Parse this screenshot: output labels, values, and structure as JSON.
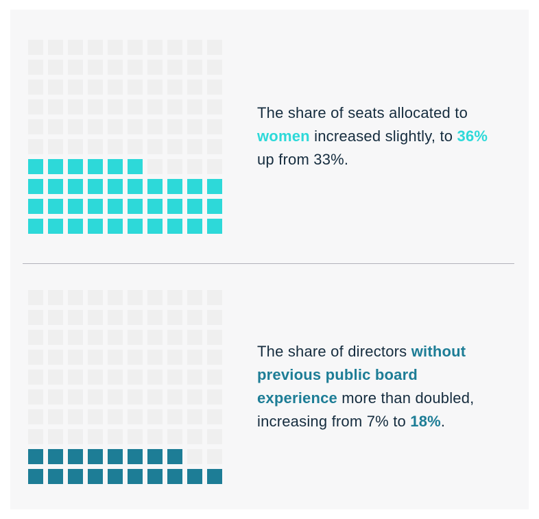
{
  "page": {
    "background": "#ffffff",
    "card_background": "#f7f7f8"
  },
  "colors": {
    "accent_cyan": "#2dd9d9",
    "accent_teal": "#1d7d96",
    "empty_square": "#efefef",
    "text_dark": "#152c3e",
    "divider": "#b1b1ba"
  },
  "sections": [
    {
      "caption_segments": [
        {
          "text": "The share of seats allocated to ",
          "style": "normal"
        },
        {
          "text": "women",
          "style": "accent-cyan"
        },
        {
          "text": " increased slightly, to ",
          "style": "normal"
        },
        {
          "text": "36%",
          "style": "accent-cyan"
        },
        {
          "text": " up from 33%.",
          "style": "normal"
        }
      ]
    },
    {
      "caption_segments": [
        {
          "text": "The share of directors ",
          "style": "normal"
        },
        {
          "text": "without previous public board experience",
          "style": "accent-teal"
        },
        {
          "text": " more than doubled, increasing from 7% to ",
          "style": "normal"
        },
        {
          "text": "18%",
          "style": "accent-teal"
        },
        {
          "text": ".",
          "style": "normal"
        }
      ]
    }
  ],
  "chart_data": [
    {
      "type": "waffle",
      "title": "Share of seats allocated to women",
      "rows": 10,
      "columns": 10,
      "percent_per_square": 1,
      "filled_squares": 36,
      "value_percent": 36,
      "previous_value_percent": 33,
      "fill_color": "#2dd9d9",
      "empty_color": "#efefef",
      "fill_order": "bottom-up-left-to-right"
    },
    {
      "type": "waffle",
      "title": "Share of directors without previous public board experience",
      "rows": 10,
      "columns": 10,
      "percent_per_square": 1,
      "filled_squares": 18,
      "value_percent": 18,
      "previous_value_percent": 7,
      "fill_color": "#1d7d96",
      "empty_color": "#efefef",
      "fill_order": "bottom-up-left-to-right"
    }
  ]
}
